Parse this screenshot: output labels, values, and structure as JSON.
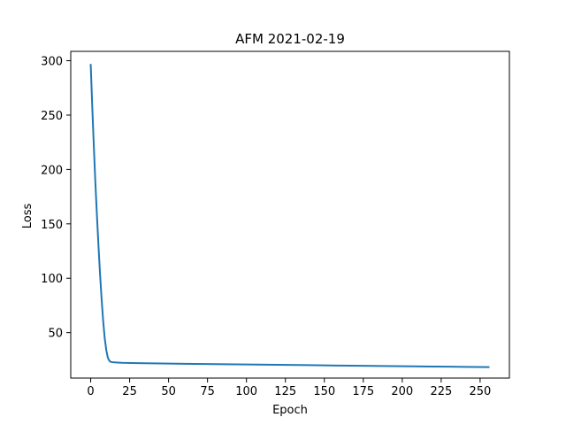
{
  "chart_data": {
    "type": "line",
    "title": "AFM 2021-02-19",
    "xlabel": "Epoch",
    "ylabel": "Loss",
    "xlim": [
      -12.8,
      268.8
    ],
    "ylim": [
      8.2,
      308.6
    ],
    "xticks": [
      0,
      25,
      50,
      75,
      100,
      125,
      150,
      175,
      200,
      225,
      250
    ],
    "yticks": [
      50,
      100,
      150,
      200,
      250,
      300
    ],
    "grid": false,
    "color": "#1f77b4",
    "series": [
      {
        "x": [
          0,
          1,
          2,
          3,
          4,
          5,
          6,
          7,
          8,
          9,
          10,
          11,
          12,
          13,
          15,
          20,
          30,
          40,
          50,
          60,
          80,
          100,
          120,
          140,
          160,
          180,
          200,
          220,
          240,
          256
        ],
        "y": [
          297,
          258,
          222,
          188,
          158,
          130,
          104,
          81,
          61,
          45,
          34,
          27,
          24,
          23,
          22.6,
          22.2,
          21.9,
          21.7,
          21.5,
          21.3,
          21.0,
          20.7,
          20.4,
          20.1,
          19.7,
          19.4,
          19.1,
          18.8,
          18.5,
          18.3
        ]
      }
    ]
  }
}
